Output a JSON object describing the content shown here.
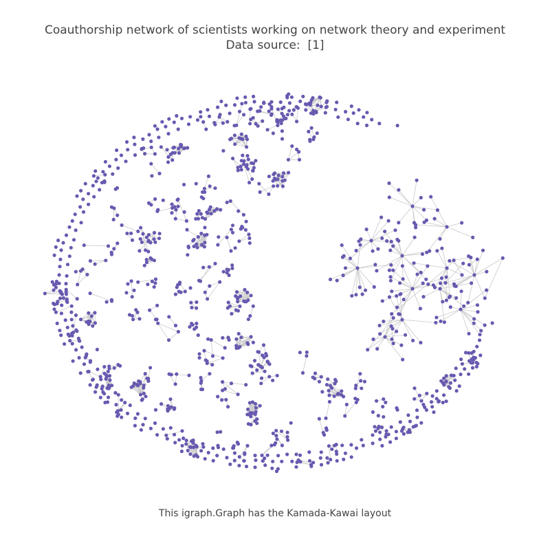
{
  "title": {
    "line1": "Coauthorship network of scientists working on network theory and experiment",
    "source_prefix": "Data source:",
    "source_link": "[1]"
  },
  "caption": "This igraph.Graph has the Kamada-Kawai layout",
  "style": {
    "node_color": "#6959b0",
    "edge_color": "#c8c8c8",
    "text_color": "#444444",
    "background": "#ffffff"
  },
  "graph": {
    "layout": "Kamada-Kawai"
  }
}
